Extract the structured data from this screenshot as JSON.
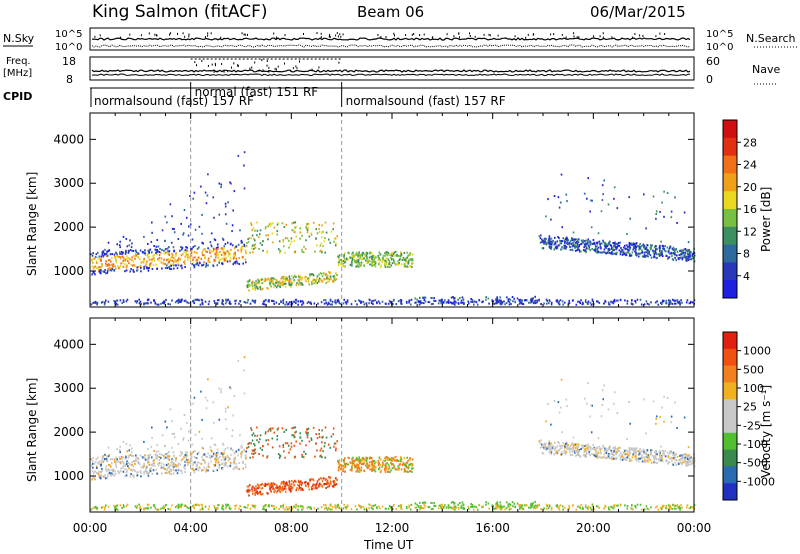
{
  "header": {
    "station": "King Salmon (fitACF)",
    "beam": "Beam 06",
    "date": "06/Mar/2015"
  },
  "strips": {
    "nsky_label": "N.Sky",
    "nsearch_label": "N.Search",
    "nsky_ticks": [
      "10^5",
      "10^0"
    ],
    "freq_label": "Freq.",
    "freq_unit": "[MHz]",
    "freq_ticks": [
      "18",
      "8"
    ],
    "nave_label": "Nave",
    "nave_ticks": [
      "60",
      "0"
    ],
    "cpid_label": "CPID",
    "cpid_segments": [
      {
        "label": "normalsound (fast) 157 RF",
        "start_hr": 0,
        "end_hr": 4.0
      },
      {
        "label": "normal (fast)  151 RF",
        "start_hr": 4.0,
        "end_hr": 10.0
      },
      {
        "label": "normalsound (fast) 157 RF",
        "start_hr": 10.0,
        "end_hr": 24.0
      }
    ]
  },
  "chart_data": [
    {
      "type": "heatmap",
      "name": "power",
      "ylabel": "Slant Range [km]",
      "yticks": [
        "4000",
        "3000",
        "2000",
        "1000"
      ],
      "ylim": [
        180,
        4600
      ],
      "colorbar": {
        "label": "Power [dB]",
        "ticks": [
          "28",
          "24",
          "20",
          "16",
          "12",
          "8",
          "4"
        ],
        "colors": [
          "#2020e0",
          "#2838b8",
          "#2e6aa0",
          "#3c9060",
          "#78c040",
          "#e8d820",
          "#f0a018",
          "#f07018",
          "#e03010",
          "#d01010"
        ]
      }
    },
    {
      "type": "heatmap",
      "name": "velocity",
      "ylabel": "Slant Range [km]",
      "yticks": [
        "4000",
        "3000",
        "2000",
        "1000"
      ],
      "ylim": [
        180,
        4600
      ],
      "xlabel": "Time UT",
      "xticks": [
        "00:00",
        "04:00",
        "08:00",
        "12:00",
        "16:00",
        "20:00",
        "00:00"
      ],
      "xlim_hr": [
        0,
        24
      ],
      "colorbar": {
        "label": "Velocity [m s⁻¹]",
        "ticks": [
          "1000",
          "500",
          "100",
          "25",
          "-25",
          "-100",
          "-500",
          "-1000"
        ],
        "colors": [
          "#2030c0",
          "#2a6ab0",
          "#3a8a50",
          "#50c030",
          "#c8c8c8",
          "#c8c8c8",
          "#f0b020",
          "#f08020",
          "#f05010",
          "#e02010"
        ]
      }
    }
  ]
}
